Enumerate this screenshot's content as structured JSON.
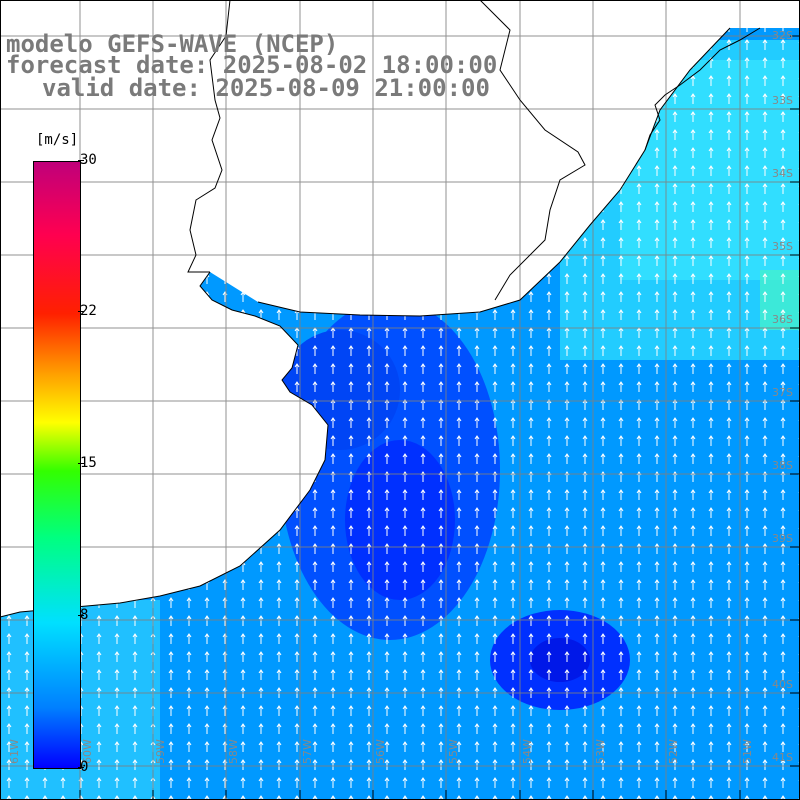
{
  "title": {
    "line1": "modelo GEFS-WAVE (NCEP)",
    "line2": "forecast date: 2025-08-02 18:00:00",
    "line3": "valid date: 2025-08-09 21:00:00"
  },
  "colorbar": {
    "unit": "[m/s]",
    "ticks": [
      "30",
      "22",
      "15",
      "8",
      "0"
    ],
    "colors": [
      "#0000ff",
      "#0080ff",
      "#00e0ff",
      "#00ff80",
      "#33ff00",
      "#ffff00",
      "#ffa000",
      "#ff2000",
      "#ff0050",
      "#c0007a"
    ]
  },
  "map": {
    "lat_labels": [
      "32S",
      "33S",
      "34S",
      "35S",
      "36S",
      "37S",
      "38S",
      "39S",
      "40S",
      "41S"
    ],
    "lon_labels": [
      "61W",
      "60W",
      "59W",
      "58W",
      "57W",
      "56W",
      "55W",
      "54W",
      "53W",
      "52W",
      "51W"
    ],
    "land_color": "#ffffff",
    "coast_color": "#000000",
    "grid_color": "#808080"
  }
}
